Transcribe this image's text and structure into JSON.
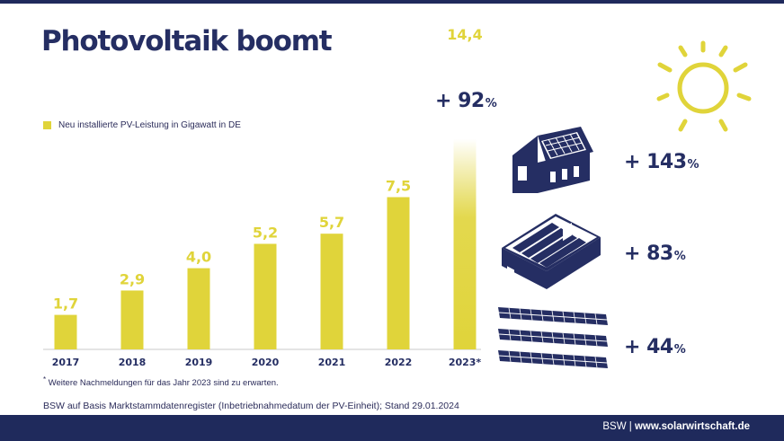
{
  "title": "Photovoltaik boomt",
  "legend_label": "Neu installierte PV-Leistung in Gigawatt in DE",
  "footnote_mark": "*",
  "footnote": "Weitere Nachmeldungen für das Jahr 2023 sind zu erwarten.",
  "source": "BSW auf Basis Marktstammdatenregister (Inbetriebnahmedatum der PV-Einheit); Stand 29.01.2024",
  "footer": {
    "org": "BSW | ",
    "url": "www.solarwirtschaft.de"
  },
  "colors": {
    "bar": "#e0d43a",
    "navy": "#252e63",
    "footer": "#1f2a5c"
  },
  "growth_2023": {
    "value": "+ 92",
    "unit": "%"
  },
  "stats": [
    {
      "icon": "house-solar-icon",
      "value": "+ 143",
      "unit": "%"
    },
    {
      "icon": "commercial-roof-solar-icon",
      "value": "+ 83",
      "unit": "%"
    },
    {
      "icon": "ground-mounted-solar-icon",
      "value": "+ 44",
      "unit": "%"
    }
  ],
  "icons": {
    "sun": "sun-icon"
  },
  "chart_data": {
    "type": "bar",
    "title": "Photovoltaik boomt",
    "categories": [
      "2017",
      "2018",
      "2019",
      "2020",
      "2021",
      "2022",
      "2023*"
    ],
    "value_labels": [
      "1,7",
      "2,9",
      "4,0",
      "5,2",
      "5,7",
      "7,5",
      "14,4"
    ],
    "series": [
      {
        "name": "Neu installierte PV-Leistung in Gigawatt in DE",
        "values": [
          1.7,
          2.9,
          4.0,
          5.2,
          5.7,
          7.5,
          14.4
        ]
      }
    ],
    "xlabel": "",
    "ylabel": "",
    "legend": "top-left",
    "grid": false,
    "annotations": [
      "+ 92 %"
    ]
  }
}
